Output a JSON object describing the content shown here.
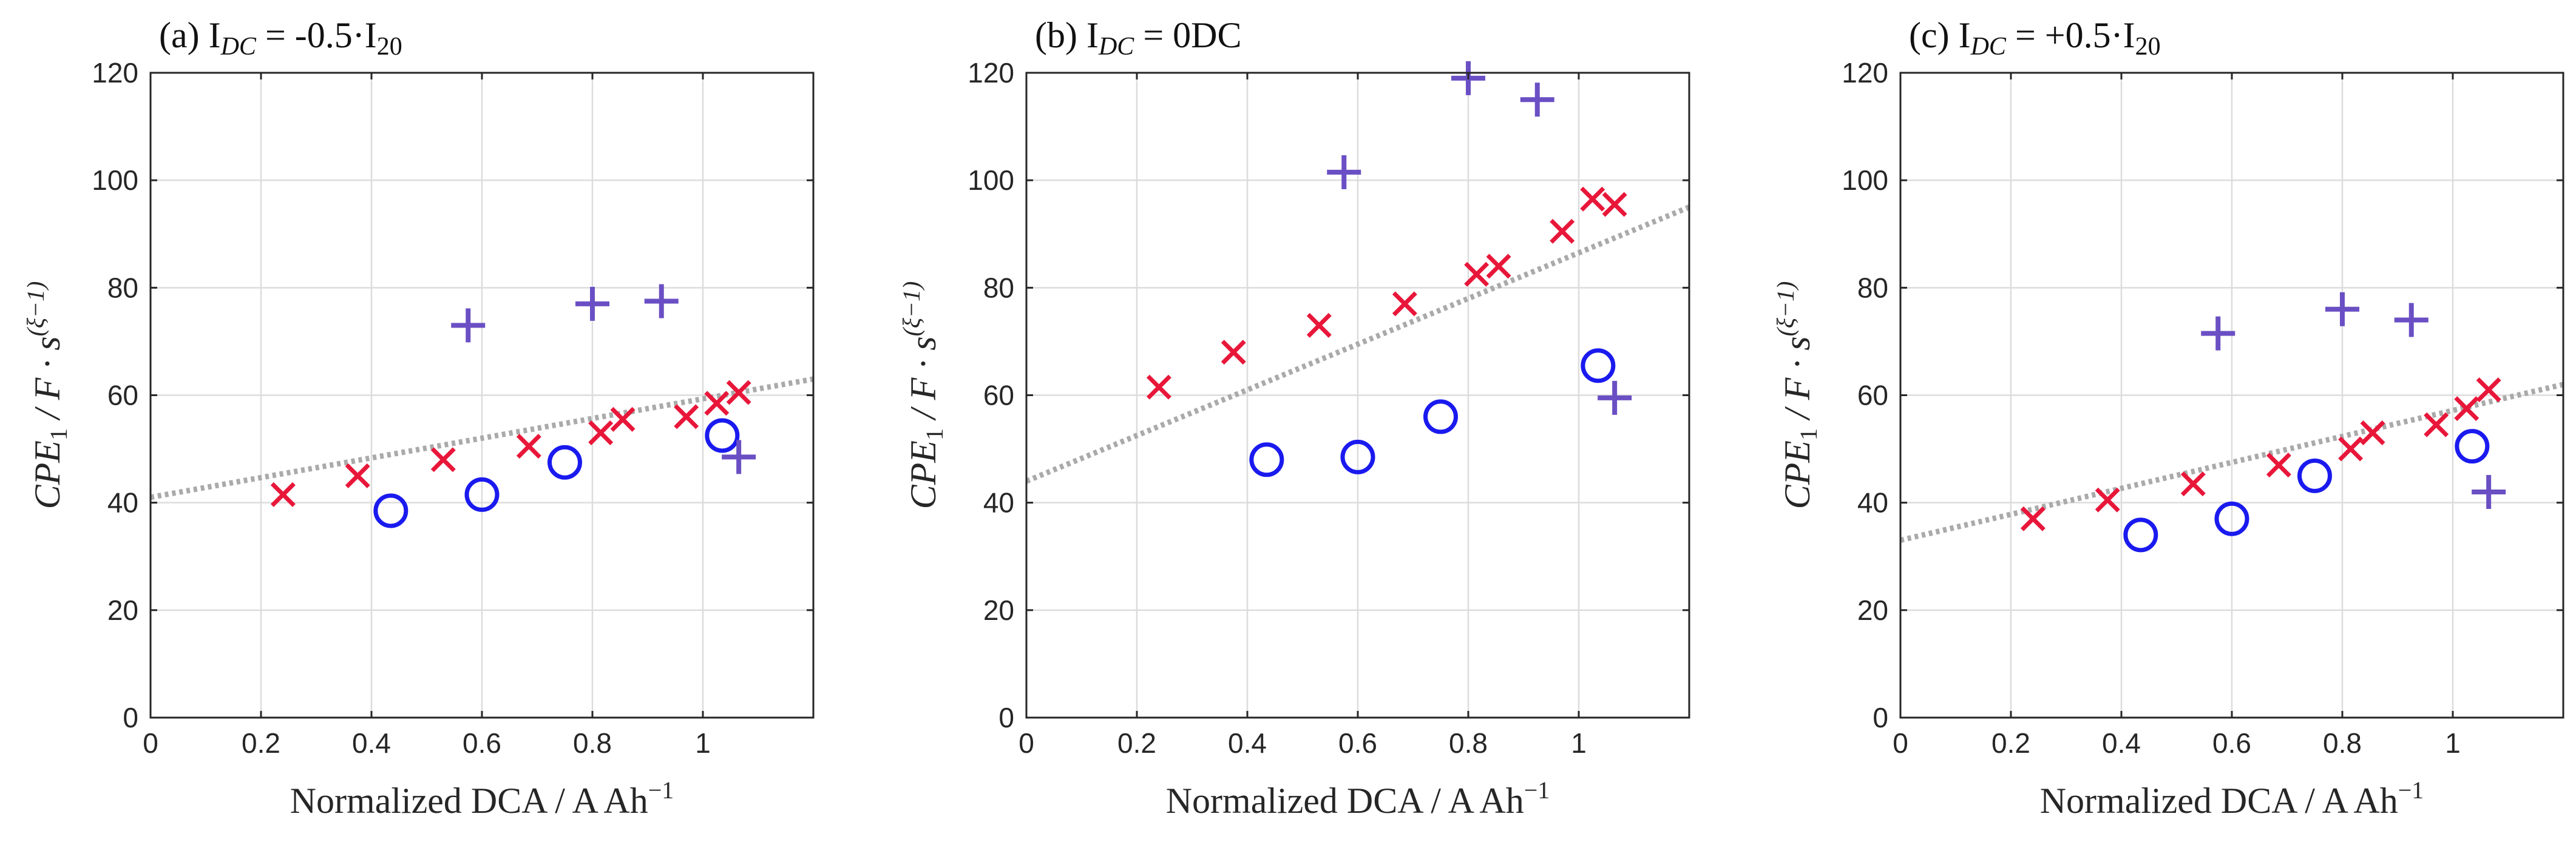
{
  "chart_data": [
    {
      "type": "scatter",
      "title": "(a) I",
      "title_sub": "DC",
      "title_rest": " = -0.5·I",
      "title_rest_sub": "20",
      "xlabel": "Normalized DCA / A Ah",
      "xlabel_sup": "−1",
      "ylabel": "CPE",
      "ylabel_sub": "1",
      "ylabel_rest": " / F · s",
      "ylabel_sup": "(ξ−1)",
      "xlim": [
        0,
        1.2
      ],
      "ylim": [
        0,
        120
      ],
      "xticks": [
        0,
        0.2,
        0.4,
        0.6,
        0.8,
        1
      ],
      "xtick_labels": [
        "0",
        "0.2",
        "0.4",
        "0.6",
        "0.8",
        "1"
      ],
      "yticks": [
        0,
        20,
        40,
        60,
        80,
        100,
        120
      ],
      "ytick_labels": [
        "0",
        "20",
        "40",
        "60",
        "80",
        "100",
        "120"
      ],
      "grid": true,
      "series": [
        {
          "name": "cross",
          "marker": "x",
          "color": "#e8173a",
          "x": [
            0.24,
            0.375,
            0.53,
            0.685,
            0.815,
            0.855,
            0.97,
            1.025,
            1.065
          ],
          "y": [
            41.5,
            45,
            48,
            50.5,
            53,
            55.5,
            56,
            58.5,
            60.5
          ]
        },
        {
          "name": "circle",
          "marker": "o",
          "color": "#1a1aef",
          "x": [
            0.435,
            0.6,
            0.75,
            1.035
          ],
          "y": [
            38.5,
            41.5,
            47.5,
            52.5
          ]
        },
        {
          "name": "plus",
          "marker": "+",
          "color": "#6a4fc4",
          "x": [
            0.575,
            0.8,
            0.925,
            1.065
          ],
          "y": [
            73,
            77,
            77.5,
            48.5
          ]
        },
        {
          "name": "fit",
          "marker": "dotted-line",
          "color": "#aaaaaa",
          "x": [
            0,
            1.2
          ],
          "y": [
            41,
            63
          ]
        }
      ]
    },
    {
      "type": "scatter",
      "title": "(b) I",
      "title_sub": "DC",
      "title_rest": " = 0DC",
      "title_rest_sub": "",
      "xlabel": "Normalized DCA / A Ah",
      "xlabel_sup": "−1",
      "ylabel": "CPE",
      "ylabel_sub": "1",
      "ylabel_rest": " / F · s",
      "ylabel_sup": "(ξ−1)",
      "xlim": [
        0,
        1.2
      ],
      "ylim": [
        0,
        120
      ],
      "xticks": [
        0,
        0.2,
        0.4,
        0.6,
        0.8,
        1
      ],
      "xtick_labels": [
        "0",
        "0.2",
        "0.4",
        "0.6",
        "0.8",
        "1"
      ],
      "yticks": [
        0,
        20,
        40,
        60,
        80,
        100,
        120
      ],
      "ytick_labels": [
        "0",
        "20",
        "40",
        "60",
        "80",
        "100",
        "120"
      ],
      "grid": true,
      "series": [
        {
          "name": "cross",
          "marker": "x",
          "color": "#e8173a",
          "x": [
            0.24,
            0.375,
            0.53,
            0.685,
            0.815,
            0.855,
            0.97,
            1.025,
            1.065
          ],
          "y": [
            61.5,
            68,
            73,
            77,
            82.5,
            84,
            90.5,
            96.5,
            95.5
          ]
        },
        {
          "name": "circle",
          "marker": "o",
          "color": "#1a1aef",
          "x": [
            0.435,
            0.6,
            0.75,
            1.035
          ],
          "y": [
            48,
            48.5,
            56,
            65.5
          ]
        },
        {
          "name": "plus",
          "marker": "+",
          "color": "#6a4fc4",
          "x": [
            0.575,
            0.8,
            0.925,
            1.065
          ],
          "y": [
            101.5,
            119,
            115,
            59.5
          ]
        },
        {
          "name": "fit",
          "marker": "dotted-line",
          "color": "#aaaaaa",
          "x": [
            0,
            1.2
          ],
          "y": [
            44,
            95
          ]
        }
      ]
    },
    {
      "type": "scatter",
      "title": "(c) I",
      "title_sub": "DC",
      "title_rest": " = +0.5·I",
      "title_rest_sub": "20",
      "xlabel": "Normalized DCA / A Ah",
      "xlabel_sup": "−1",
      "ylabel": "CPE",
      "ylabel_sub": "1",
      "ylabel_rest": " / F · s",
      "ylabel_sup": "(ξ−1)",
      "xlim": [
        0,
        1.2
      ],
      "ylim": [
        0,
        120
      ],
      "xticks": [
        0,
        0.2,
        0.4,
        0.6,
        0.8,
        1
      ],
      "xtick_labels": [
        "0",
        "0.2",
        "0.4",
        "0.6",
        "0.8",
        "1"
      ],
      "yticks": [
        0,
        20,
        40,
        60,
        80,
        100,
        120
      ],
      "ytick_labels": [
        "0",
        "20",
        "40",
        "60",
        "80",
        "100",
        "120"
      ],
      "grid": true,
      "series": [
        {
          "name": "cross",
          "marker": "x",
          "color": "#e8173a",
          "x": [
            0.24,
            0.375,
            0.53,
            0.685,
            0.815,
            0.855,
            0.97,
            1.025,
            1.065
          ],
          "y": [
            37,
            40.5,
            43.5,
            47,
            50,
            53,
            54.5,
            57.5,
            61
          ]
        },
        {
          "name": "circle",
          "marker": "o",
          "color": "#1a1aef",
          "x": [
            0.435,
            0.6,
            0.75,
            1.035
          ],
          "y": [
            34,
            37,
            45,
            50.5
          ]
        },
        {
          "name": "plus",
          "marker": "+",
          "color": "#6a4fc4",
          "x": [
            0.575,
            0.8,
            0.925,
            1.065
          ],
          "y": [
            71.5,
            76,
            74,
            42
          ]
        },
        {
          "name": "fit",
          "marker": "dotted-line",
          "color": "#aaaaaa",
          "x": [
            0,
            1.2
          ],
          "y": [
            33,
            62
          ]
        }
      ]
    }
  ]
}
